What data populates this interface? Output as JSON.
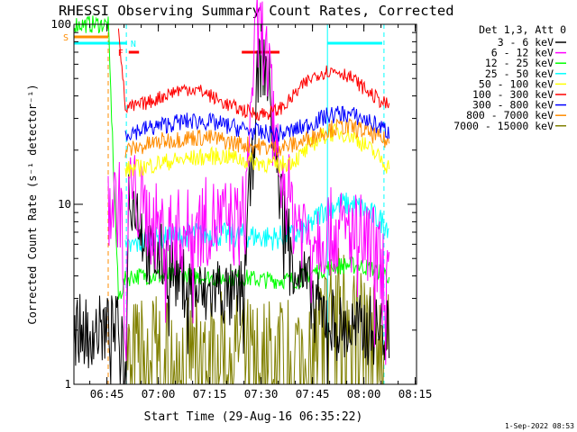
{
  "chart_data": {
    "type": "line",
    "title": "RHESSI Observing Summary Count Rates, Corrected",
    "xlabel": "Start Time (29-Aug-16 06:35:22)",
    "ylabel": "Corrected Count Rate (s⁻¹ detector⁻¹)",
    "y_scale": "log",
    "ylim": [
      1,
      100
    ],
    "xlim_minutes": [
      0,
      100
    ],
    "x_start_time": "06:35:22",
    "x_ticks": [
      {
        "label": "06:45",
        "minute": 9.633
      },
      {
        "label": "07:00",
        "minute": 24.633
      },
      {
        "label": "07:15",
        "minute": 39.633
      },
      {
        "label": "07:30",
        "minute": 54.633
      },
      {
        "label": "07:45",
        "minute": 69.633
      },
      {
        "label": "08:00",
        "minute": 84.633
      },
      {
        "label": "08:15",
        "minute": 99.633
      }
    ],
    "y_ticks": [
      {
        "label": "1",
        "value": 1
      },
      {
        "label": "10",
        "value": 10
      },
      {
        "label": "100",
        "value": 100
      }
    ],
    "legend_header": "Det 1,3, Att 0",
    "legend_position": "right",
    "series": [
      {
        "name": "3 - 6 keV",
        "color": "#000000",
        "x": [
          0,
          10,
          13,
          14,
          15,
          16,
          18,
          22,
          26,
          30,
          34,
          38,
          42,
          45,
          47,
          49,
          51,
          52,
          53,
          54,
          55,
          56,
          57,
          58,
          60,
          62,
          64,
          66,
          68,
          70,
          72,
          74,
          76,
          78,
          80,
          82,
          84,
          86,
          88,
          90,
          92
        ],
        "y": [
          2,
          2,
          2,
          2,
          1,
          12,
          10,
          5,
          5,
          4,
          3.5,
          3,
          3.5,
          3,
          3,
          3.2,
          10,
          15,
          35,
          60,
          62,
          58,
          45,
          25,
          12,
          8,
          5,
          4,
          3.5,
          3,
          2.5,
          2.5,
          2.2,
          2,
          2,
          2,
          2,
          2,
          2,
          2,
          2
        ]
      },
      {
        "name": "6 - 12 keV",
        "color": "#ff00ff",
        "x": [
          10,
          14,
          15,
          16,
          18,
          22,
          26,
          30,
          34,
          38,
          42,
          46,
          48,
          50,
          51,
          52,
          53,
          54,
          55,
          56,
          57,
          58,
          60,
          62,
          64,
          66,
          68,
          70,
          72,
          75,
          78,
          81,
          84,
          86,
          88,
          90,
          92
        ],
        "y": [
          10,
          10,
          1,
          13,
          11,
          8,
          7,
          7,
          7,
          8,
          8,
          8,
          7.5,
          9,
          20,
          50,
          75,
          90,
          85,
          70,
          50,
          30,
          18,
          12,
          9,
          8,
          7,
          7,
          7,
          7,
          7,
          7,
          6.5,
          6,
          5.5,
          4.5,
          3.8
        ]
      },
      {
        "name": "12 - 25 keV",
        "color": "#00ff00",
        "x": [
          0,
          10,
          13,
          15,
          17,
          20,
          25,
          30,
          35,
          40,
          45,
          50,
          55,
          60,
          65,
          70,
          75,
          80,
          85,
          90,
          92
        ],
        "y": [
          100,
          100,
          3,
          3.8,
          4,
          4,
          4,
          4,
          4,
          3.9,
          3.9,
          3.9,
          3.8,
          3.8,
          3.8,
          4.2,
          4.5,
          4.6,
          4.5,
          4.2,
          4
        ]
      },
      {
        "name": "25 - 50 keV",
        "color": "#00ffff",
        "x": [
          15,
          18,
          22,
          26,
          30,
          34,
          38,
          42,
          46,
          50,
          54,
          58,
          62,
          66,
          70,
          72,
          74,
          76,
          78,
          80,
          82,
          84,
          86,
          88,
          90,
          92
        ],
        "y": [
          5.5,
          6,
          6.3,
          6.5,
          6.6,
          6.8,
          6.8,
          6.8,
          6.7,
          6.7,
          6.6,
          6.5,
          6.6,
          6.8,
          8,
          9,
          9.5,
          9.8,
          10,
          10,
          9.8,
          9.5,
          9,
          8.5,
          8,
          7.5
        ]
      },
      {
        "name": "50 - 100 keV",
        "color": "#ffff00",
        "x": [
          15,
          20,
          25,
          30,
          35,
          40,
          45,
          50,
          55,
          58,
          60,
          62,
          64,
          66,
          68,
          70,
          72,
          74,
          76,
          78,
          80,
          82,
          84,
          86,
          88,
          90,
          92
        ],
        "y": [
          15.5,
          16,
          17,
          17.5,
          18,
          18.5,
          18.5,
          17.5,
          17,
          16.5,
          16.5,
          17,
          17.5,
          18.5,
          20,
          22,
          23.5,
          24.5,
          25,
          25,
          24.5,
          23.5,
          22,
          20.5,
          19,
          17.5,
          16
        ]
      },
      {
        "name": "100 - 300 keV",
        "color": "#ff0000",
        "x": [
          13,
          15,
          18,
          22,
          26,
          30,
          34,
          38,
          42,
          46,
          50,
          53,
          56,
          59,
          62,
          65,
          68,
          71,
          74,
          77,
          80,
          83,
          86,
          89,
          92
        ],
        "y": [
          100,
          34,
          35,
          37,
          40,
          43,
          44,
          42,
          38,
          35,
          33,
          32,
          32,
          33,
          36,
          42,
          48,
          53,
          55,
          55,
          52,
          47,
          42,
          38,
          35
        ]
      },
      {
        "name": "300 - 800 keV",
        "color": "#0000ff",
        "x": [
          15,
          18,
          22,
          26,
          30,
          34,
          38,
          42,
          46,
          50,
          54,
          58,
          62,
          66,
          70,
          74,
          78,
          82,
          86,
          90,
          92
        ],
        "y": [
          25,
          25.5,
          26.5,
          27.5,
          28.5,
          29,
          29,
          28,
          27,
          26,
          25,
          24.5,
          25,
          26.5,
          28.5,
          31,
          32,
          31,
          29,
          26.5,
          25
        ]
      },
      {
        "name": "800 - 7000 keV",
        "color": "#ff8c00",
        "x": [
          15,
          18,
          22,
          26,
          30,
          34,
          38,
          42,
          46,
          50,
          54,
          58,
          62,
          66,
          70,
          74,
          78,
          82,
          86,
          90,
          92
        ],
        "y": [
          20,
          20.5,
          21.5,
          22.5,
          23,
          23.5,
          23.5,
          23,
          22,
          21.5,
          21,
          20.5,
          21,
          22,
          24,
          26,
          27,
          26.5,
          25,
          23,
          22
        ]
      },
      {
        "name": "7000 - 15000 keV",
        "color": "#808000",
        "x": [
          15,
          20,
          25,
          30,
          35,
          40,
          45,
          50,
          55,
          60,
          65,
          70,
          72,
          74,
          76,
          78,
          80,
          82,
          84,
          86,
          88,
          90,
          92
        ],
        "y": [
          1.5,
          1.6,
          1.7,
          1.6,
          1.5,
          1.6,
          1.7,
          1.6,
          1.5,
          1.6,
          1.6,
          1.8,
          2.2,
          2.6,
          3,
          3.2,
          3,
          2.8,
          2.5,
          2.2,
          2,
          1.8,
          1.6
        ]
      }
    ],
    "annotations": [
      {
        "label": "S",
        "color": "#ff8c00",
        "x_minutes": [
          0,
          10
        ],
        "y": 90
      },
      {
        "label": "N",
        "color": "#00ffff",
        "x_minutes": [
          0,
          15.5
        ],
        "y": 82
      },
      {
        "label": "F",
        "color": "#ff0000",
        "x_minutes": [
          16,
          19
        ],
        "y": 73
      },
      {
        "label": "",
        "color": "#ff0000",
        "x_minutes": [
          49,
          60
        ],
        "y": 73
      },
      {
        "label": "",
        "color": "#00ffff",
        "x_minutes": [
          74,
          90
        ],
        "y": 82
      }
    ],
    "vertical_markers": [
      {
        "minute": 10,
        "color": "#ff8c00",
        "style": "dashed"
      },
      {
        "minute": 15.3,
        "color": "#00ffff",
        "style": "dashed"
      },
      {
        "minute": 74,
        "color": "#00ffff",
        "style": "solid"
      },
      {
        "minute": 90.5,
        "color": "#00ffff",
        "style": "dashed"
      }
    ],
    "grid": false
  },
  "footer": {
    "timestamp": "1-Sep-2022 08:53"
  }
}
